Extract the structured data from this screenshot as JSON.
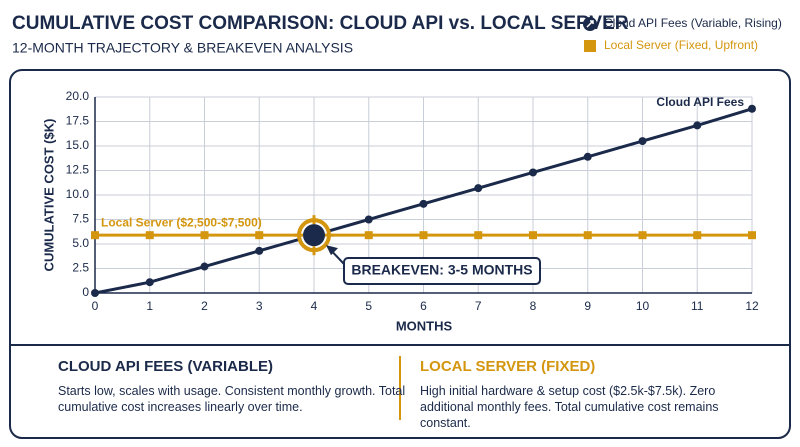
{
  "chart_data": {
    "type": "line",
    "title": "CUMULATIVE COST COMPARISON: CLOUD API vs. LOCAL SERVER",
    "subtitle": "12-MONTH TRAJECTORY & BREAKEVEN ANALYSIS",
    "x_label": "MONTHS",
    "y_label": "CUMULATIVE COST ($K)",
    "x": [
      0,
      1,
      2,
      3,
      4,
      5,
      6,
      7,
      8,
      9,
      10,
      11,
      12
    ],
    "series": [
      {
        "name": "Cloud API Fees (Variable, Rising)",
        "color": "#1b2a4a",
        "label": "Cloud API Fees",
        "values": [
          0,
          1.1,
          2.7,
          4.3,
          5.9,
          7.5,
          9.1,
          10.7,
          12.3,
          13.9,
          15.5,
          17.1,
          18.8
        ]
      },
      {
        "name": "Local Server (Fixed, Upfront)",
        "color": "#d4960f",
        "label": "Local Server ($2,500-$7,500)",
        "values": [
          5.9,
          5.9,
          5.9,
          5.9,
          5.9,
          5.9,
          5.9,
          5.9,
          5.9,
          5.9,
          5.9,
          5.9,
          5.9
        ]
      }
    ],
    "annotation": "BREAKEVEN: 3-5 MONTHS",
    "xlim": [
      0,
      12
    ],
    "xticks": [
      0,
      1,
      2,
      3,
      4,
      5,
      6,
      7,
      8,
      9,
      10,
      11,
      12
    ],
    "ylim": [
      0,
      20
    ],
    "yticks": [
      0,
      2.5,
      {
        "value": 5,
        "label": "5.0"
      },
      7.5,
      {
        "value": 10,
        "label": "10.0"
      },
      12.5,
      {
        "value": 15,
        "label": "15.0"
      },
      17.5,
      {
        "value": 20,
        "label": "20.0"
      }
    ],
    "grid": true,
    "legend": "top-right"
  },
  "panels": [
    {
      "title": "CLOUD API FEES (VARIABLE)",
      "text": "Starts low, scales with usage. Consistent monthly growth. Total cumulative cost increases linearly over time."
    },
    {
      "title": "LOCAL SERVER (FIXED)",
      "text": "High initial hardware & setup cost ($2.5k-$7.5k). Zero additional monthly fees. Total cumulative cost remains constant."
    }
  ]
}
